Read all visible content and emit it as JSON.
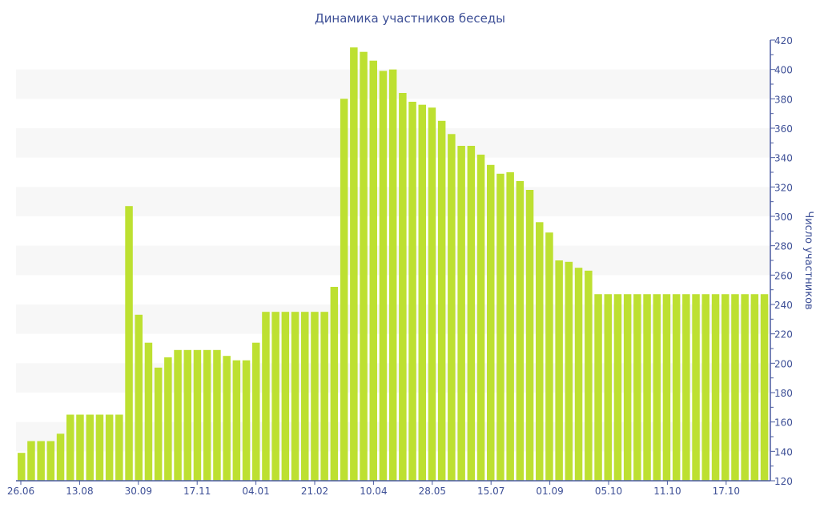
{
  "chart_data": {
    "type": "bar",
    "title": "Динамика участников беседы",
    "xlabel": "",
    "ylabel": "Число участников",
    "ylim": [
      120,
      420
    ],
    "yticks": [
      120,
      140,
      160,
      180,
      200,
      220,
      240,
      260,
      280,
      300,
      320,
      340,
      360,
      380,
      400,
      420
    ],
    "grid": "alternating horizontal bands",
    "x_tick_labels": [
      "26.06",
      "13.08",
      "30.09",
      "17.11",
      "04.01",
      "21.02",
      "10.04",
      "28.05",
      "15.07",
      "01.09",
      "05.10",
      "11.10",
      "17.10"
    ],
    "values": [
      139,
      147,
      147,
      147,
      152,
      165,
      165,
      165,
      165,
      165,
      165,
      307,
      233,
      214,
      197,
      204,
      209,
      209,
      209,
      209,
      209,
      205,
      202,
      202,
      214,
      235,
      235,
      235,
      235,
      235,
      235,
      235,
      252,
      380,
      415,
      412,
      406,
      399,
      400,
      384,
      378,
      376,
      374,
      365,
      356,
      348,
      348,
      342,
      335,
      329,
      330,
      324,
      318,
      296,
      289,
      270,
      269,
      265,
      263,
      247,
      247,
      247,
      247,
      247,
      247,
      247,
      247,
      247,
      247,
      247,
      247,
      247,
      247,
      247,
      247,
      247,
      247
    ],
    "colors": {
      "bar": "#bde031",
      "axis": "#4a5aa0",
      "text": "#3d4f96",
      "band": "#f7f7f7"
    }
  }
}
